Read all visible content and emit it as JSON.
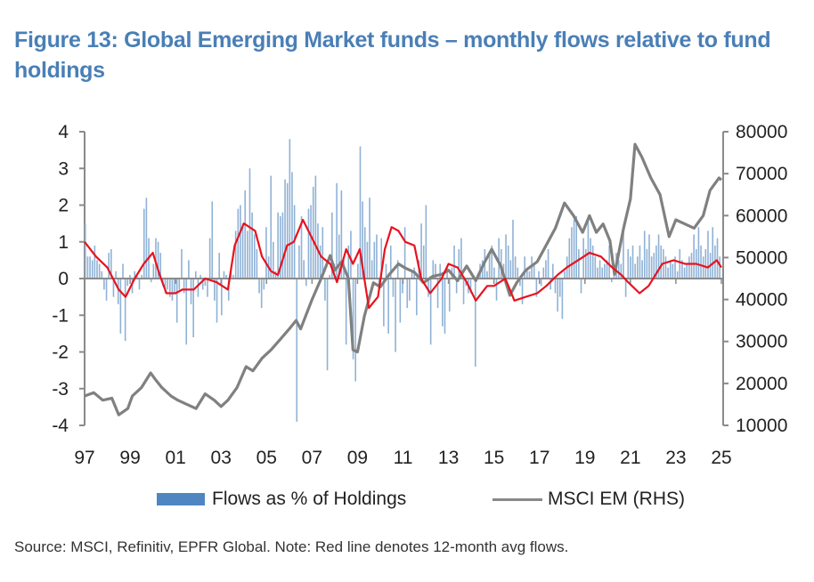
{
  "chart_data": {
    "type": "bar+line",
    "title": "Figure 13: Global Emerging Market funds – monthly flows relative to fund holdings",
    "xlabel": "",
    "ylabel_left": "",
    "ylabel_right": "",
    "x_range": [
      1997,
      2025
    ],
    "x_tick_labels": [
      "97",
      "99",
      "01",
      "03",
      "05",
      "07",
      "09",
      "11",
      "13",
      "15",
      "17",
      "19",
      "21",
      "23",
      "25"
    ],
    "x_tick_years": [
      1997,
      1999,
      2001,
      2003,
      2005,
      2007,
      2009,
      2011,
      2013,
      2015,
      2017,
      2019,
      2021,
      2023,
      2025
    ],
    "ylim_left": [
      -4,
      4
    ],
    "y_ticks_left": [
      "4",
      "3",
      "2",
      "1",
      "0",
      "-1",
      "-2",
      "-3",
      "-4"
    ],
    "ylim_right": [
      10000,
      80000
    ],
    "y_ticks_right": [
      "80000",
      "70000",
      "60000",
      "50000",
      "40000",
      "30000",
      "20000",
      "10000"
    ],
    "colors": {
      "bars": "#8fb2d6",
      "red_line": "#e8121e",
      "msci": "#808080",
      "title": "#4a7fb6"
    },
    "series": [
      {
        "name": "Flows as % of Holdings",
        "type": "bar",
        "axis": "left",
        "start": 1997.0,
        "step_months": 1,
        "values": [
          1.5,
          0.6,
          0.6,
          0.5,
          0.9,
          0.5,
          0.4,
          0.2,
          -0.3,
          -0.6,
          0.7,
          0.8,
          -0.5,
          0.2,
          -0.7,
          -1.5,
          0.4,
          -1.7,
          -0.2,
          0.1,
          -0.4,
          0.2,
          0.1,
          -0.3,
          0.1,
          1.9,
          2.2,
          1.1,
          -0.1,
          0.4,
          1.1,
          1.0,
          0.7,
          -0.2,
          -0.4,
          -0.3,
          -0.5,
          -0.6,
          -0.4,
          -1.2,
          -0.3,
          0.8,
          -0.4,
          -1.8,
          0.5,
          -0.7,
          -1.6,
          0.2,
          -0.5,
          0.1,
          -0.3,
          -0.2,
          -0.5,
          1.1,
          2.1,
          -0.6,
          -1.2,
          0.7,
          -1.0,
          0.2,
          0.1,
          -0.6,
          0.2,
          0.1,
          1.3,
          1.9,
          2.0,
          1.5,
          2.4,
          1.3,
          3.0,
          1.8,
          1.2,
          0.8,
          -0.4,
          -0.8,
          -0.3,
          1.4,
          0.6,
          2.8,
          1.0,
          0.2,
          1.8,
          1.7,
          1.8,
          2.7,
          2.6,
          3.8,
          2.9,
          2.0,
          -3.9,
          0.9,
          1.7,
          0.5,
          -0.2,
          1.9,
          2.0,
          2.5,
          2.8,
          1.5,
          0.9,
          1.4,
          -0.6,
          -2.5,
          0.1,
          1.8,
          0.4,
          2.6,
          1.2,
          2.4,
          0.5,
          -1.8,
          0.9,
          1.3,
          -2.2,
          -2.8,
          0.4,
          3.6,
          2.1,
          1.4,
          1.0,
          2.2,
          0.5,
          1.0,
          1.2,
          -0.2,
          1.1,
          -1.3,
          0.4,
          -1.5,
          0.9,
          -0.5,
          -2.0,
          0.5,
          -1.2,
          -0.4,
          1.4,
          -0.8,
          -0.6,
          0.2,
          0.3,
          -1.0,
          0.5,
          1.5,
          0.9,
          2.0,
          -0.5,
          -1.8,
          0.5,
          0.4,
          -0.8,
          0.4,
          -1.3,
          -1.5,
          0.3,
          -0.9,
          0.3,
          0.9,
          -0.4,
          0.8,
          1.1,
          -0.7,
          -0.2,
          -0.4,
          -0.4,
          0.1,
          -2.4,
          0.1,
          0.4,
          0.5,
          0.8,
          0.2,
          0.7,
          0.9,
          0.3,
          -0.6,
          1.1,
          0.8,
          0.4,
          1.2,
          0.9,
          0.5,
          1.6,
          0.6,
          0.3,
          -0.2,
          -0.7,
          0.6,
          0.3,
          0.2,
          0.6,
          0.4,
          -0.5,
          0.2,
          -0.2,
          0.3,
          0.5,
          0.8,
          -0.3,
          0.4,
          -0.4,
          -0.9,
          -0.5,
          -1.1,
          0.2,
          0.6,
          1.1,
          1.4,
          1.6,
          1.7,
          0.8,
          -0.4,
          1.1,
          0.8,
          1.6,
          1.1,
          0.9,
          0.6,
          0.3,
          0.5,
          0.3,
          0.4,
          0.5,
          0.9,
          -0.1,
          0.2,
          0.7,
          0.5,
          0.4,
          1.3,
          -0.5,
          0.8,
          0.6,
          0.9,
          0.4,
          0.6,
          0.9,
          0.5,
          1.3,
          0.8,
          1.2,
          0.6,
          0.7,
          0.9,
          1.2,
          0.9,
          0.8,
          0.6,
          0.3,
          0.5,
          0.4,
          0.6,
          0.2,
          0.8,
          0.5,
          0.3,
          0.4,
          0.6,
          0.7,
          1.2,
          0.8,
          1.4,
          0.9,
          0.6,
          0.8,
          1.3,
          0.7,
          1.4,
          0.9,
          1.1,
          0.6
        ]
      },
      {
        "name": "12-month avg flows",
        "type": "line",
        "axis": "left",
        "x": [
          1997.0,
          1997.5,
          1998.0,
          1998.5,
          1998.8,
          1999.2,
          1999.6,
          2000.0,
          2000.3,
          2000.6,
          2001.0,
          2001.3,
          2001.8,
          2002.3,
          2002.8,
          2003.3,
          2003.6,
          2004.0,
          2004.5,
          2004.8,
          2005.2,
          2005.5,
          2005.9,
          2006.2,
          2006.6,
          2007.0,
          2007.4,
          2007.8,
          2008.1,
          2008.5,
          2008.8,
          2009.1,
          2009.5,
          2009.9,
          2010.2,
          2010.5,
          2010.8,
          2011.1,
          2011.5,
          2011.8,
          2012.2,
          2012.7,
          2013.0,
          2013.4,
          2013.8,
          2014.2,
          2014.7,
          2015.0,
          2015.5,
          2015.9,
          2016.4,
          2016.9,
          2017.3,
          2017.8,
          2018.2,
          2018.7,
          2019.2,
          2019.7,
          2020.2,
          2020.6,
          2020.9,
          2021.4,
          2021.8,
          2022.4,
          2022.9,
          2023.4,
          2023.9,
          2024.4,
          2024.8,
          2025.0
        ],
        "values": [
          1.0,
          0.6,
          0.3,
          -0.3,
          -0.5,
          0.0,
          0.4,
          0.7,
          0.1,
          -0.4,
          -0.4,
          -0.3,
          -0.3,
          0.0,
          -0.1,
          -0.3,
          0.9,
          1.5,
          1.3,
          0.6,
          0.2,
          0.1,
          0.9,
          1.0,
          1.6,
          1.1,
          0.6,
          0.4,
          -0.1,
          0.8,
          0.4,
          0.8,
          -0.8,
          -0.5,
          0.8,
          1.4,
          1.3,
          1.0,
          0.9,
          0.0,
          -0.4,
          0.0,
          0.4,
          0.3,
          -0.1,
          -0.6,
          -0.2,
          -0.2,
          0.0,
          -0.6,
          -0.5,
          -0.4,
          -0.2,
          0.1,
          0.3,
          0.5,
          0.7,
          0.6,
          0.3,
          0.1,
          -0.1,
          -0.4,
          -0.2,
          0.4,
          0.5,
          0.4,
          0.4,
          0.3,
          0.5,
          0.3
        ]
      },
      {
        "name": "MSCI EM (RHS)",
        "type": "line",
        "axis": "right",
        "x": [
          1997.0,
          1997.4,
          1997.8,
          1998.2,
          1998.5,
          1998.9,
          1999.1,
          1999.5,
          1999.9,
          2000.1,
          2000.4,
          2000.8,
          2001.1,
          2001.5,
          2001.9,
          2002.3,
          2002.7,
          2003.0,
          2003.3,
          2003.7,
          2004.1,
          2004.4,
          2004.8,
          2005.2,
          2005.6,
          2006.0,
          2006.3,
          2006.5,
          2007.0,
          2007.4,
          2007.8,
          2008.0,
          2008.3,
          2008.6,
          2008.8,
          2009.0,
          2009.3,
          2009.7,
          2010.0,
          2010.4,
          2010.8,
          2011.1,
          2011.5,
          2011.9,
          2012.3,
          2012.7,
          2013.0,
          2013.4,
          2013.8,
          2014.2,
          2014.6,
          2014.9,
          2015.3,
          2015.7,
          2016.0,
          2016.4,
          2016.9,
          2017.3,
          2017.7,
          2018.1,
          2018.5,
          2018.9,
          2019.2,
          2019.5,
          2019.8,
          2020.1,
          2020.3,
          2020.7,
          2021.0,
          2021.2,
          2021.5,
          2021.9,
          2022.3,
          2022.7,
          2023.0,
          2023.4,
          2023.8,
          2024.2,
          2024.5,
          2024.7,
          2024.9,
          2025.0
        ],
        "values": [
          17000,
          17800,
          16000,
          16500,
          12500,
          14000,
          17000,
          19000,
          22500,
          21000,
          19000,
          17000,
          16000,
          15000,
          14000,
          17500,
          16000,
          14500,
          16000,
          19000,
          24000,
          23000,
          26000,
          28000,
          30500,
          33000,
          35000,
          33000,
          40000,
          45000,
          50500,
          47000,
          49000,
          45000,
          28000,
          27500,
          36000,
          44000,
          43000,
          46000,
          48500,
          47500,
          46500,
          44000,
          45500,
          46000,
          47000,
          44500,
          48000,
          44500,
          49000,
          52000,
          48000,
          41000,
          44000,
          47000,
          49000,
          53000,
          57000,
          63000,
          60000,
          56000,
          60000,
          56000,
          58000,
          54000,
          46000,
          57000,
          64000,
          77000,
          74000,
          69000,
          65000,
          55000,
          59000,
          58000,
          57000,
          60000,
          66000,
          67500,
          69000,
          68500
        ]
      }
    ],
    "legend": {
      "position": "bottom",
      "items": [
        "Flows as % of Holdings",
        "MSCI EM (RHS)"
      ]
    },
    "source": "Source: MSCI, Refinitiv, EPFR Global. Note: Red line denotes 12-month avg flows."
  }
}
